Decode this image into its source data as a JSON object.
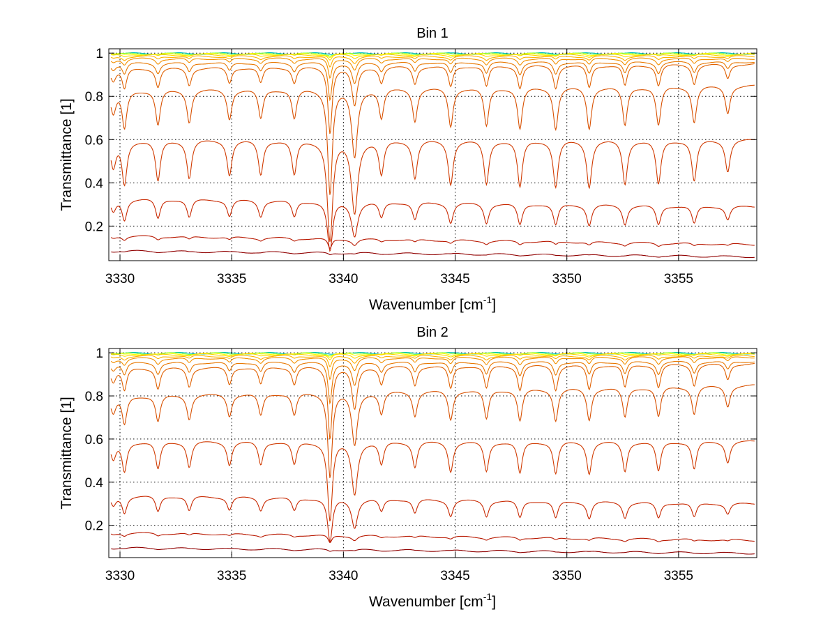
{
  "chart_data": [
    {
      "type": "line",
      "title": "Bin 1",
      "xlabel": "Wavenumber [cm",
      "xlabel_sup": "-1",
      "xlabel_end": "]",
      "ylabel": "Transmittance [1]",
      "xlim": [
        3329.5,
        3358.5
      ],
      "ylim": [
        0.04,
        1.02
      ],
      "xticks": [
        3330,
        3335,
        3340,
        3345,
        3350,
        3355
      ],
      "yticks": [
        0.2,
        0.4,
        0.6,
        0.8,
        1
      ],
      "xtick_labels": [
        "3330",
        "3335",
        "3340",
        "3345",
        "3350",
        "3355"
      ],
      "ytick_labels": [
        "0.2",
        "0.4",
        "0.6",
        "0.8",
        "1"
      ],
      "grid": true,
      "series": [
        {
          "color": "#00bfbf",
          "baseline": [
            0.998,
            0.998
          ],
          "absorption": 0.001
        },
        {
          "color": "#80ff40",
          "baseline": [
            0.997,
            0.997
          ],
          "absorption": 0.003
        },
        {
          "color": "#ffff00",
          "baseline": [
            0.995,
            0.995
          ],
          "absorption": 0.006
        },
        {
          "color": "#ffd700",
          "baseline": [
            0.992,
            0.992
          ],
          "absorption": 0.012
        },
        {
          "color": "#ffb000",
          "baseline": [
            0.985,
            0.985
          ],
          "absorption": 0.025
        },
        {
          "color": "#f39000",
          "baseline": [
            0.975,
            0.975
          ],
          "absorption": 0.045
        },
        {
          "color": "#e87800",
          "baseline": [
            0.955,
            0.96
          ],
          "absorption": 0.09
        },
        {
          "color": "#e06000",
          "baseline": [
            0.93,
            0.95
          ],
          "absorption": 0.18
        },
        {
          "color": "#d85000",
          "baseline": [
            0.83,
            0.85
          ],
          "absorption": 0.4
        },
        {
          "color": "#d03a00",
          "baseline": [
            0.6,
            0.6
          ],
          "absorption": 0.7
        },
        {
          "color": "#c82800",
          "baseline": [
            0.33,
            0.29
          ],
          "absorption": 0.6
        },
        {
          "color": "#b81800",
          "baseline": [
            0.155,
            0.115
          ],
          "absorption": 0.18
        },
        {
          "color": "#900000",
          "baseline": [
            0.085,
            0.058
          ],
          "absorption": 0.05
        }
      ]
    },
    {
      "type": "line",
      "title": "Bin 2",
      "xlabel": "Wavenumber [cm",
      "xlabel_sup": "-1",
      "xlabel_end": "]",
      "ylabel": "Transmittance [1]",
      "xlim": [
        3329.5,
        3358.5
      ],
      "ylim": [
        0.05,
        1.02
      ],
      "xticks": [
        3330,
        3335,
        3340,
        3345,
        3350,
        3355
      ],
      "yticks": [
        0.2,
        0.4,
        0.6,
        0.8,
        1
      ],
      "xtick_labels": [
        "3330",
        "3335",
        "3340",
        "3345",
        "3350",
        "3355"
      ],
      "ytick_labels": [
        "0.2",
        "0.4",
        "0.6",
        "0.8",
        "1"
      ],
      "grid": true,
      "series": [
        {
          "color": "#00bfbf",
          "baseline": [
            0.998,
            0.998
          ],
          "absorption": 0.001
        },
        {
          "color": "#80ff40",
          "baseline": [
            0.997,
            0.997
          ],
          "absorption": 0.003
        },
        {
          "color": "#ffff00",
          "baseline": [
            0.995,
            0.995
          ],
          "absorption": 0.006
        },
        {
          "color": "#ffd700",
          "baseline": [
            0.992,
            0.992
          ],
          "absorption": 0.012
        },
        {
          "color": "#ffb000",
          "baseline": [
            0.985,
            0.985
          ],
          "absorption": 0.025
        },
        {
          "color": "#f39000",
          "baseline": [
            0.975,
            0.98
          ],
          "absorption": 0.05
        },
        {
          "color": "#e87800",
          "baseline": [
            0.955,
            0.96
          ],
          "absorption": 0.1
        },
        {
          "color": "#e06000",
          "baseline": [
            0.93,
            0.95
          ],
          "absorption": 0.2
        },
        {
          "color": "#d85000",
          "baseline": [
            0.8,
            0.85
          ],
          "absorption": 0.3
        },
        {
          "color": "#d03a00",
          "baseline": [
            0.59,
            0.59
          ],
          "absorption": 0.45
        },
        {
          "color": "#c82800",
          "baseline": [
            0.34,
            0.3
          ],
          "absorption": 0.45
        },
        {
          "color": "#b81800",
          "baseline": [
            0.165,
            0.13
          ],
          "absorption": 0.12
        },
        {
          "color": "#900000",
          "baseline": [
            0.095,
            0.07
          ],
          "absorption": 0.04
        }
      ]
    }
  ]
}
